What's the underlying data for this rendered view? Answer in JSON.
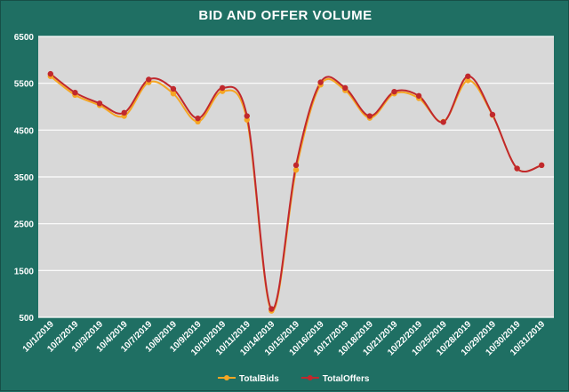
{
  "chart_data": {
    "type": "line",
    "title": "BID AND OFFER VOLUME",
    "xlabel": "",
    "ylabel": "",
    "ylim": [
      500,
      6500
    ],
    "yticks": [
      500,
      1500,
      2500,
      3500,
      4500,
      5500,
      6500
    ],
    "grid": true,
    "legend": "bottom",
    "x": [
      "10/1/2019",
      "10/2/2019",
      "10/3/2019",
      "10/4/2019",
      "10/7/2019",
      "10/8/2019",
      "10/9/2019",
      "10/10/2019",
      "10/11/2019",
      "10/14/2019",
      "10/15/2019",
      "10/16/2019",
      "10/17/2019",
      "10/18/2019",
      "10/21/2019",
      "10/22/2019",
      "10/25/2019",
      "10/28/2019",
      "10/29/2019",
      "10/30/2019",
      "10/31/2019"
    ],
    "series": [
      {
        "name": "TotalBids",
        "color": "#f5a623",
        "values": [
          5650,
          5250,
          5030,
          4800,
          5520,
          5280,
          4680,
          5330,
          4720,
          640,
          3650,
          5470,
          5350,
          4760,
          5280,
          5180,
          4680,
          5560,
          4820,
          3680,
          3750
        ]
      },
      {
        "name": "TotalOffers",
        "color": "#c0282d",
        "values": [
          5700,
          5300,
          5070,
          4870,
          5580,
          5380,
          4750,
          5400,
          4800,
          680,
          3750,
          5520,
          5400,
          4800,
          5320,
          5230,
          4670,
          5650,
          4830,
          3680,
          3750
        ]
      }
    ]
  },
  "colors": {
    "background": "#1f6f63",
    "plot_area": "#d8d8d8",
    "grid": "#ffffff"
  }
}
